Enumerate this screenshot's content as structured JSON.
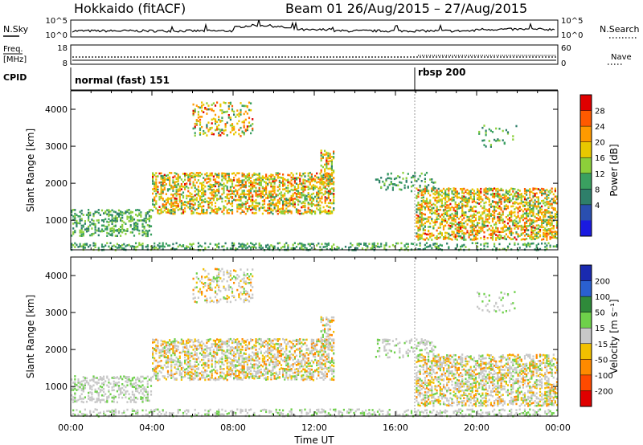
{
  "header": {
    "title": "Hokkaido (fitACF)",
    "beam_text": "Beam 01 26/Aug/2015 – 27/Aug/2015"
  },
  "nsky_panel": {
    "left_label": "N.Sky",
    "left_ticks": [
      "10^5",
      "10^0"
    ],
    "right_ticks": [
      "10^5",
      "10^0"
    ],
    "right_label": "N.Search"
  },
  "freq_panel": {
    "label_line1": "Freq.",
    "label_line2": "[MHz]",
    "left_ticks": [
      "18",
      "8"
    ],
    "right_ticks": [
      "60",
      "0"
    ],
    "right_label": "Nave"
  },
  "cpid_panel": {
    "label": "CPID",
    "segments": [
      {
        "text": "normal (fast) 151",
        "start_hour": 0
      },
      {
        "text": "rbsp 200",
        "start_hour": 17
      }
    ]
  },
  "chart_data": [
    {
      "type": "heatmap",
      "name": "power",
      "ylabel": "Slant Range [km]",
      "ylim": [
        200,
        4500
      ],
      "y_ticks": [
        "1000",
        "2000",
        "3000",
        "4000"
      ],
      "x_ticks": [
        "00:00",
        "04:00",
        "08:00",
        "12:00",
        "16:00",
        "20:00",
        "00:00"
      ],
      "colorbar_label": "Power [dB]",
      "colorbar_ticks": [
        "28",
        "24",
        "20",
        "16",
        "12",
        "8",
        "4"
      ],
      "colorbar_colors": [
        "#e00000",
        "#ff5a00",
        "#ff9a00",
        "#e8c800",
        "#8ccf3a",
        "#3aa060",
        "#2e7f6a",
        "#2a4fb0",
        "#1a1ae0"
      ]
    },
    {
      "type": "heatmap",
      "name": "velocity",
      "ylabel": "Slant Range [km]",
      "ylim": [
        200,
        4500
      ],
      "y_ticks": [
        "1000",
        "2000",
        "3000",
        "4000"
      ],
      "x_ticks": [
        "00:00",
        "04:00",
        "08:00",
        "12:00",
        "16:00",
        "20:00",
        "00:00"
      ],
      "xlabel": "Time UT",
      "colorbar_label": "Velocity [m s⁻¹]",
      "colorbar_ticks": [
        "200",
        "100",
        "50",
        "15",
        "-15",
        "-50",
        "-100",
        "-200"
      ],
      "colorbar_colors": [
        "#1a2ab0",
        "#2a60d0",
        "#2f8a3a",
        "#6ed04a",
        "#c8c8c8",
        "#f2c000",
        "#ff8a00",
        "#ff4a00",
        "#e00000"
      ]
    }
  ]
}
